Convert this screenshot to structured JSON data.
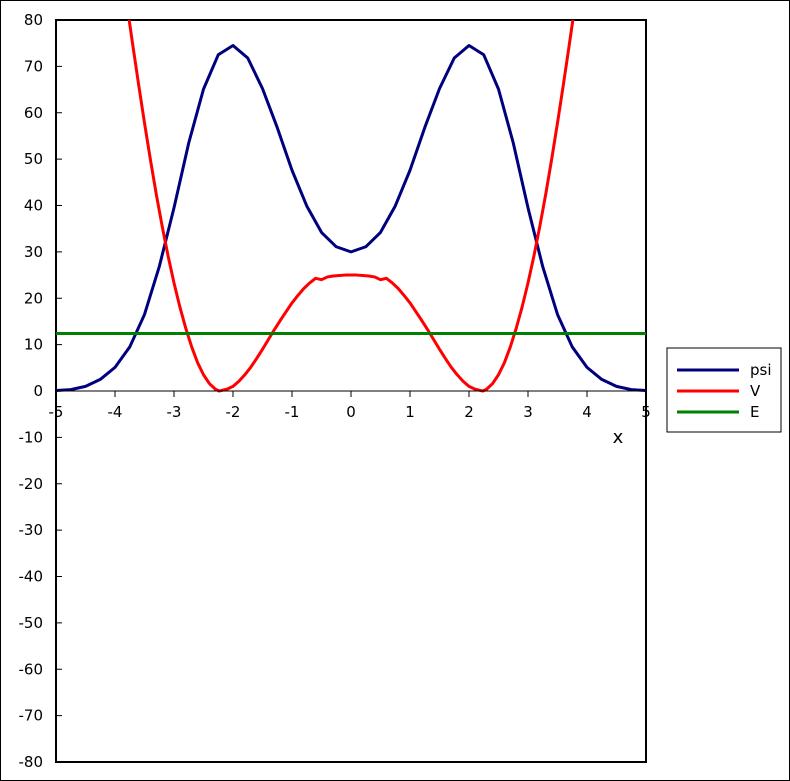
{
  "chart_data": {
    "type": "line",
    "title": "",
    "xlabel": "x",
    "ylabel": "",
    "xlim": [
      -5,
      5
    ],
    "ylim": [
      -80,
      80
    ],
    "x_ticks": [
      -5,
      -4,
      -3,
      -2,
      -1,
      0,
      1,
      2,
      3,
      4,
      5
    ],
    "x_tick_labels": [
      "-5",
      "-4",
      "-3",
      "-2",
      "-1",
      "0",
      "1",
      "2",
      "3",
      "4",
      "5"
    ],
    "y_ticks": [
      80,
      70,
      60,
      50,
      40,
      30,
      20,
      10,
      0,
      -10,
      -20,
      -30,
      -40,
      -50,
      -60,
      -70,
      -80
    ],
    "y_tick_labels": [
      "80",
      "70",
      "60",
      "50",
      "40",
      "30",
      "20",
      "10",
      "0",
      "-10",
      "-20",
      "-30",
      "-40",
      "-50",
      "-60",
      "-70",
      "-80"
    ],
    "grid": false,
    "legend_position": "right",
    "series": [
      {
        "name": "psi",
        "color": "#00007f",
        "x": [
          -5.0,
          -4.75,
          -4.5,
          -4.25,
          -4.0,
          -3.75,
          -3.5,
          -3.25,
          -3.0,
          -2.75,
          -2.5,
          -2.25,
          -2.0,
          -1.75,
          -1.5,
          -1.25,
          -1.0,
          -0.75,
          -0.5,
          -0.25,
          0.0,
          0.25,
          0.5,
          0.75,
          1.0,
          1.25,
          1.5,
          1.75,
          2.0,
          2.25,
          2.5,
          2.75,
          3.0,
          3.25,
          3.5,
          3.75,
          4.0,
          4.25,
          4.5,
          4.75,
          5.0
        ],
        "y": [
          0.1,
          0.3,
          1.0,
          2.5,
          5.1,
          9.5,
          16.5,
          26.8,
          39.5,
          53.5,
          65.1,
          72.5,
          74.5,
          71.8,
          65.2,
          56.8,
          47.6,
          39.9,
          34.2,
          31.1,
          30.0,
          31.1,
          34.2,
          39.9,
          47.6,
          56.8,
          65.2,
          71.8,
          74.5,
          72.5,
          65.1,
          53.5,
          39.5,
          26.8,
          16.5,
          9.5,
          5.1,
          2.5,
          1.0,
          0.3,
          0.1
        ]
      },
      {
        "name": "V",
        "color": "#ff0000",
        "x": [
          -3.76,
          -3.7,
          -3.6,
          -3.5,
          -3.4,
          -3.3,
          -3.2,
          -3.1,
          -3.0,
          -2.9,
          -2.8,
          -2.7,
          -2.6,
          -2.5,
          -2.4,
          -2.3,
          -2.236,
          -2.2,
          -2.1,
          -2.0,
          -1.9,
          -1.8,
          -1.7,
          -1.6,
          -1.5,
          -1.4,
          -1.3,
          -1.2,
          -1.1,
          -1.0,
          -0.9,
          -0.8,
          -0.7,
          -0.6,
          -0.5,
          -0.4,
          -0.3,
          -0.2,
          -0.1,
          0.0,
          0.1,
          0.2,
          0.3,
          0.4,
          0.5,
          0.6,
          0.7,
          0.8,
          0.9,
          1.0,
          1.1,
          1.2,
          1.3,
          1.4,
          1.5,
          1.6,
          1.7,
          1.8,
          1.9,
          2.0,
          2.1,
          2.2,
          2.236,
          2.3,
          2.4,
          2.5,
          2.6,
          2.7,
          2.8,
          2.9,
          3.0,
          3.1,
          3.2,
          3.3,
          3.4,
          3.5,
          3.6,
          3.7,
          3.76
        ],
        "y": [
          80.0,
          74.7,
          66.1,
          57.8,
          49.9,
          42.4,
          35.5,
          29.1,
          23.3,
          18.1,
          13.5,
          9.5,
          6.1,
          3.5,
          1.6,
          0.4,
          0.0,
          0.1,
          0.4,
          1.0,
          2.1,
          3.5,
          5.1,
          7.0,
          9.0,
          11.1,
          13.2,
          15.2,
          17.1,
          19.0,
          20.6,
          22.1,
          23.3,
          24.3,
          24.0,
          24.6,
          24.8,
          24.9,
          25.0,
          25.0,
          25.0,
          24.9,
          24.8,
          24.6,
          24.0,
          24.3,
          23.3,
          22.1,
          20.6,
          19.0,
          17.1,
          15.2,
          13.2,
          11.1,
          9.0,
          7.0,
          5.1,
          3.5,
          2.1,
          1.0,
          0.4,
          0.1,
          0.0,
          0.4,
          1.6,
          3.5,
          6.1,
          9.5,
          13.5,
          18.1,
          23.3,
          29.1,
          35.5,
          42.4,
          49.9,
          57.8,
          66.1,
          74.7,
          80.0
        ]
      },
      {
        "name": "E",
        "color": "#007f00",
        "x": [
          -5,
          5
        ],
        "y": [
          12.4,
          12.4
        ]
      }
    ]
  }
}
